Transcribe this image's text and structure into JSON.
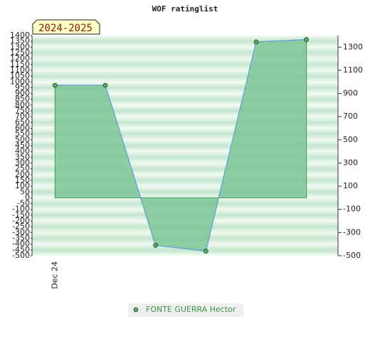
{
  "chart_data": {
    "type": "area",
    "title": "WOF ratinglist",
    "annotation": "2024-2025",
    "categories": [
      "Dec 24",
      null,
      null,
      null,
      null,
      null
    ],
    "series": [
      {
        "name": "FONTE GUERRA Hector",
        "color": "#6aa8d8",
        "fill_color": "#7cc595",
        "marker_color": "#5aa86a",
        "legend_color": "#3a9a4a",
        "values": [
          970,
          970,
          -410,
          -460,
          1345,
          1365
        ]
      }
    ],
    "ylim": [
      -500,
      1400
    ],
    "yticks": [
      -500,
      -450,
      -400,
      -350,
      -300,
      -250,
      -200,
      -150,
      -100,
      -50,
      0,
      50,
      100,
      150,
      200,
      250,
      300,
      350,
      400,
      450,
      500,
      550,
      600,
      650,
      700,
      750,
      800,
      850,
      900,
      950,
      1000,
      1050,
      1100,
      1150,
      1200,
      1250,
      1300,
      1350,
      1400
    ],
    "y2lim": [
      -500,
      1400
    ],
    "y2ticks": [
      -500,
      -300,
      -100,
      100,
      300,
      500,
      700,
      900,
      1100,
      1300
    ],
    "grid": true
  }
}
